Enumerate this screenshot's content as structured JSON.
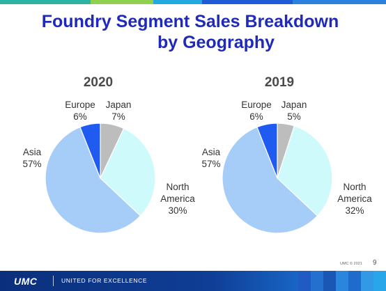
{
  "slide": {
    "title_line1": "Foundry Segment Sales Breakdown",
    "title_line2": "by Geography",
    "copyright": "UMC © 2021",
    "page_number": "9"
  },
  "footer": {
    "logo": "UMC",
    "slogan": "UNITED FOR EXCELLENCE"
  },
  "colors": {
    "title": "#1f2bb8",
    "asia": "#a6cdf7",
    "europe": "#1f5bf0",
    "japan": "#bdbdbd",
    "north_america": "#cffafc"
  },
  "chart_data": [
    {
      "type": "pie",
      "title": "2020",
      "slices": [
        {
          "label": "Japan",
          "value": 7,
          "display": "7%"
        },
        {
          "label": "North America",
          "value": 30,
          "display": "30%"
        },
        {
          "label": "Asia",
          "value": 57,
          "display": "57%"
        },
        {
          "label": "Europe",
          "value": 6,
          "display": "6%"
        }
      ]
    },
    {
      "type": "pie",
      "title": "2019",
      "slices": [
        {
          "label": "Japan",
          "value": 5,
          "display": "5%"
        },
        {
          "label": "North America",
          "value": 32,
          "display": "32%"
        },
        {
          "label": "Asia",
          "value": 57,
          "display": "57%"
        },
        {
          "label": "Europe",
          "value": 6,
          "display": "6%"
        }
      ]
    }
  ],
  "labels": {
    "europe": "Europe",
    "japan": "Japan",
    "asia": "Asia",
    "north": "North",
    "america": "America"
  }
}
